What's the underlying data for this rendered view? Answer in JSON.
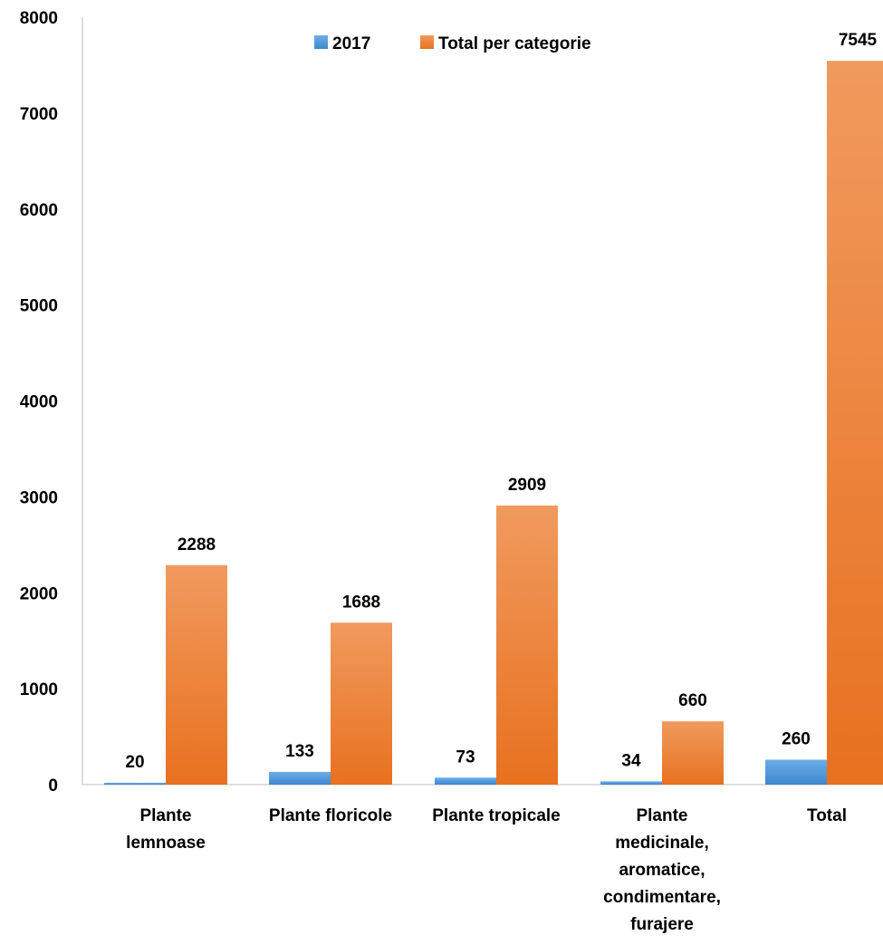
{
  "chart_data": {
    "type": "bar",
    "categories": [
      "Plante lemnoase",
      "Plante floricole",
      "Plante tropicale",
      "Plante medicinale, aromatice, condimentare, furajere",
      "Total"
    ],
    "category_lines": [
      [
        "Plante",
        "lemnoase"
      ],
      [
        "Plante floricole"
      ],
      [
        "Plante tropicale"
      ],
      [
        "Plante",
        "medicinale,",
        "aromatice,",
        "condimentare,",
        "furajere"
      ],
      [
        "Total"
      ]
    ],
    "series": [
      {
        "name": "2017",
        "values": [
          20,
          133,
          73,
          34,
          260
        ],
        "color": "#4A90D9",
        "gradient": [
          "#6BAEE8",
          "#3F86CF"
        ]
      },
      {
        "name": "Total per categorie",
        "values": [
          2288,
          1688,
          2909,
          660,
          7545
        ],
        "color": "#ED7D31",
        "gradient": [
          "#F09A5E",
          "#E8711F"
        ]
      }
    ],
    "data_labels": {
      "2017": [
        "20",
        "133",
        "73",
        "34",
        "260"
      ],
      "Total per categorie": [
        "2288",
        "1688",
        "2909",
        "660",
        "7545"
      ]
    },
    "ylim": [
      0,
      8000
    ],
    "yticks": [
      0,
      1000,
      2000,
      3000,
      4000,
      5000,
      6000,
      7000,
      8000
    ],
    "ytick_labels": [
      "0",
      "1000",
      "2000",
      "3000",
      "4000",
      "5000",
      "6000",
      "7000",
      "8000"
    ],
    "title": "",
    "xlabel": "",
    "ylabel": "",
    "grid": false,
    "legend_position": "top"
  }
}
